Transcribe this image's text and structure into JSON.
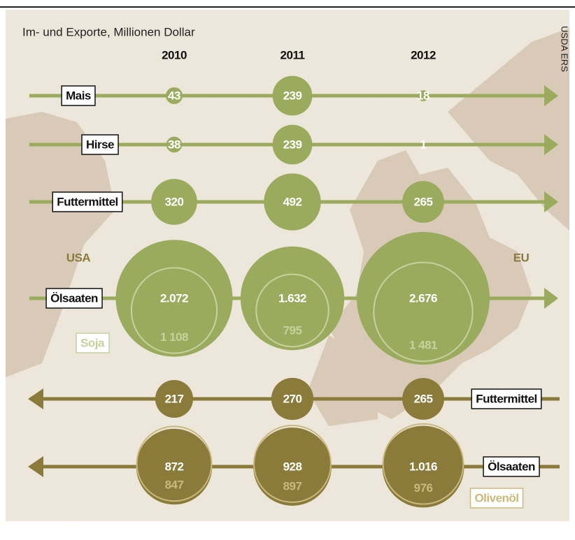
{
  "chart_data": {
    "type": "bubble",
    "title": "Im- und Exporte, Millionen Dollar",
    "source": "USDA ERS",
    "left_label": "USA",
    "right_label": "EU",
    "categories": [
      "2010",
      "2011",
      "2012"
    ],
    "series": [
      {
        "name": "Mais",
        "color": "#9aab5e",
        "values": [
          43,
          239,
          18
        ]
      },
      {
        "name": "Hirse",
        "color": "#9aab5e",
        "values": [
          38,
          239,
          1
        ]
      },
      {
        "name": "Futtermittel",
        "color": "#9aab5e",
        "values": [
          320,
          492,
          265
        ]
      },
      {
        "name": "Ölsaaten",
        "color": "#9aab5e",
        "values": [
          2072,
          1632,
          2676
        ],
        "value_labels": [
          "2.072",
          "1.632",
          "2.676"
        ],
        "sub": {
          "name": "Soja",
          "color": "#c8d19c",
          "values": [
            1108,
            795,
            1481
          ],
          "value_labels": [
            "1 108",
            "795",
            "1 481"
          ]
        }
      },
      {
        "name": "Futtermittel",
        "color": "#8a7b3b",
        "values": [
          217,
          270,
          265
        ]
      },
      {
        "name": "Ölsaaten",
        "color": "#8a7b3b",
        "values": [
          872,
          928,
          1016
        ],
        "value_labels": [
          "872",
          "928",
          "1.016"
        ],
        "sub": {
          "name": "Olivenöl",
          "color": "#c9b97e",
          "values": [
            847,
            897,
            976
          ]
        }
      }
    ]
  }
}
